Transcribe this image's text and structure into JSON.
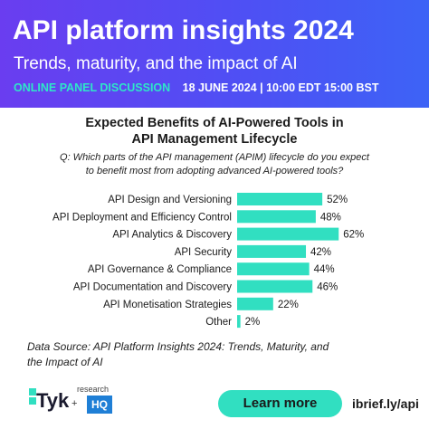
{
  "header": {
    "title": "API platform insights 2024",
    "subtitle": "Trends, maturity, and the impact of AI",
    "tag": "ONLINE PANEL DISCUSSION",
    "datetime": "18 JUNE 2024 | 10:00 EDT  15:00 BST"
  },
  "chart_title_line1": "Expected Benefits of AI-Powered Tools in",
  "chart_title_line2": "API Management Lifecycle",
  "question_line1": "Q: Which parts of the API management (APIM) lifecycle do you expect",
  "question_line2": "to benefit most from adopting advanced AI-powered tools?",
  "chart_data": {
    "type": "bar",
    "orientation": "horizontal",
    "categories": [
      "API Design and Versioning",
      "API Deployment and Efficiency Control",
      "API Analytics & Discovery",
      "API Security",
      "API Governance & Compliance",
      "API Documentation and Discovery",
      "API Monetisation Strategies",
      "Other"
    ],
    "values": [
      52,
      48,
      62,
      42,
      44,
      46,
      22,
      2
    ],
    "value_labels": [
      "52%",
      "48%",
      "62%",
      "42%",
      "44%",
      "46%",
      "22%",
      "2%"
    ],
    "bar_color": "#31dfc1",
    "grid": false,
    "legend": "none"
  },
  "source_line1": "Data Source: API Platform Insights 2024: Trends, Maturity, and",
  "source_line2": "the Impact of AI",
  "footer": {
    "logo": "Tyk",
    "research_label": "research",
    "hq_label": "HQ",
    "plus": "+",
    "cta_label": "Learn more",
    "link_text": "ibrief.ly/api"
  },
  "colors": {
    "accent": "#31dfc1",
    "header_gradient_start": "#6a3df0",
    "header_gradient_end": "#3d63f6"
  }
}
